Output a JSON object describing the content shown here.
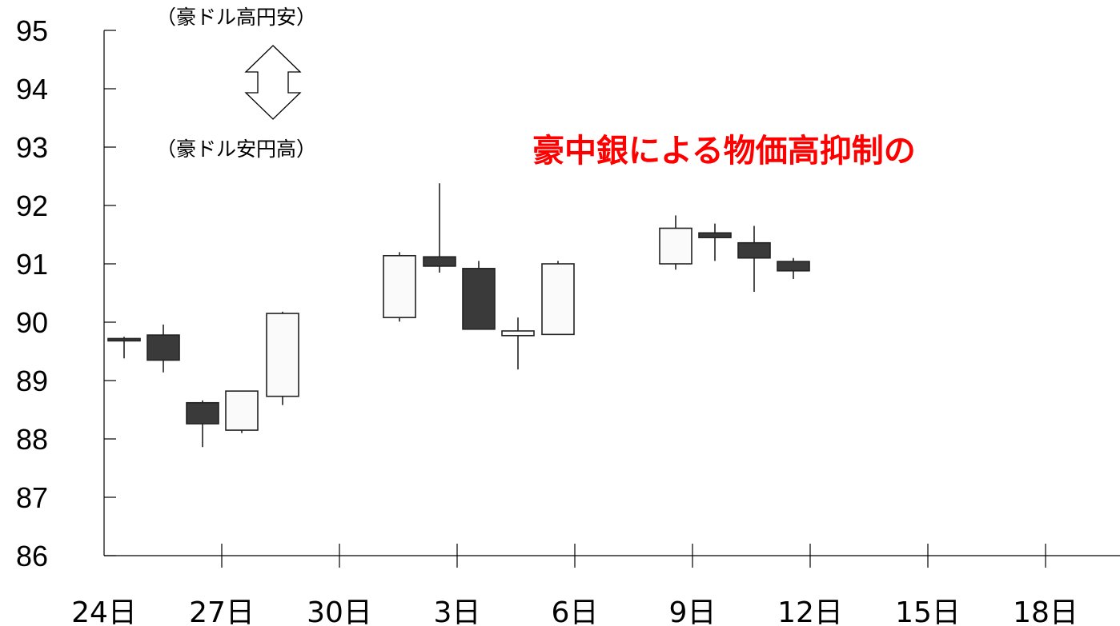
{
  "chart_data": {
    "type": "candlestick",
    "headline": "豪中銀による物価高抑制の",
    "note_up": "（豪ドル高円安）",
    "note_down": "（豪ドル安円高）",
    "ylim": [
      86,
      95
    ],
    "y_ticks": [
      "95",
      "94",
      "93",
      "92",
      "91",
      "90",
      "89",
      "88",
      "87",
      "86"
    ],
    "x_ticks": [
      "24日",
      "27日",
      "30日",
      "3日",
      "6日",
      "9日",
      "12日",
      "15日",
      "18日"
    ],
    "candles": [
      {
        "open": 89.72,
        "high": 89.75,
        "low": 89.38,
        "close": 89.68
      },
      {
        "open": 89.78,
        "high": 89.96,
        "low": 89.14,
        "close": 89.35
      },
      {
        "open": 88.62,
        "high": 88.66,
        "low": 87.86,
        "close": 88.26
      },
      {
        "open": 88.15,
        "high": 88.82,
        "low": 88.1,
        "close": 88.82
      },
      {
        "open": 88.73,
        "high": 90.18,
        "low": 88.58,
        "close": 90.15
      },
      {
        "open": 90.08,
        "high": 91.2,
        "low": 90.01,
        "close": 91.14
      },
      {
        "open": 91.12,
        "high": 92.38,
        "low": 90.85,
        "close": 90.96
      },
      {
        "open": 90.92,
        "high": 91.05,
        "low": 89.87,
        "close": 89.88
      },
      {
        "open": 89.77,
        "high": 90.08,
        "low": 89.19,
        "close": 89.85
      },
      {
        "open": 89.79,
        "high": 91.05,
        "low": 89.79,
        "close": 91.0
      },
      {
        "open": 91.0,
        "high": 91.83,
        "low": 90.9,
        "close": 91.61
      },
      {
        "open": 91.53,
        "high": 91.69,
        "low": 91.05,
        "close": 91.45
      },
      {
        "open": 91.36,
        "high": 91.65,
        "low": 90.52,
        "close": 91.1
      },
      {
        "open": 91.04,
        "high": 91.1,
        "low": 90.74,
        "close": 90.88
      }
    ],
    "colors": {
      "up_fill": "#fafafa",
      "down_fill": "#3a3a3a",
      "headline": "#ff0000"
    }
  }
}
